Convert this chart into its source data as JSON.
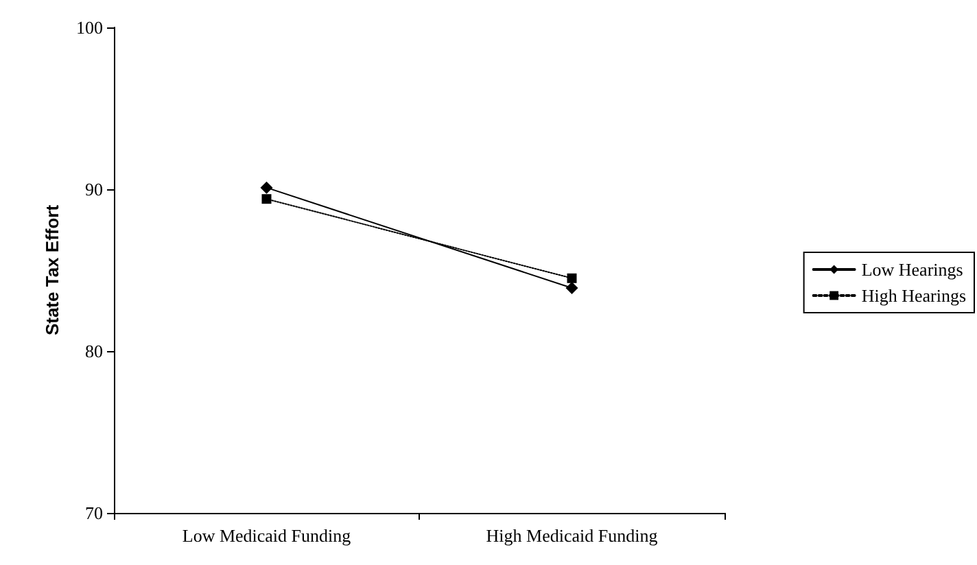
{
  "chart_data": {
    "type": "line",
    "ylabel": "State Tax Effort",
    "categories": [
      "Low Medicaid Funding",
      "High Medicaid Funding"
    ],
    "series": [
      {
        "name": "Low Hearings",
        "color": "#000000",
        "values": [
          90.1,
          83.9
        ],
        "marker": "diamond",
        "line_style": "solid"
      },
      {
        "name": "High Hearings",
        "color": "#000000",
        "values": [
          89.4,
          84.5
        ],
        "marker": "square",
        "line_style": "dotted"
      }
    ],
    "ylim": [
      70,
      100
    ],
    "yticks": [
      70,
      80,
      90,
      100
    ],
    "grid": false,
    "legend": "right"
  }
}
